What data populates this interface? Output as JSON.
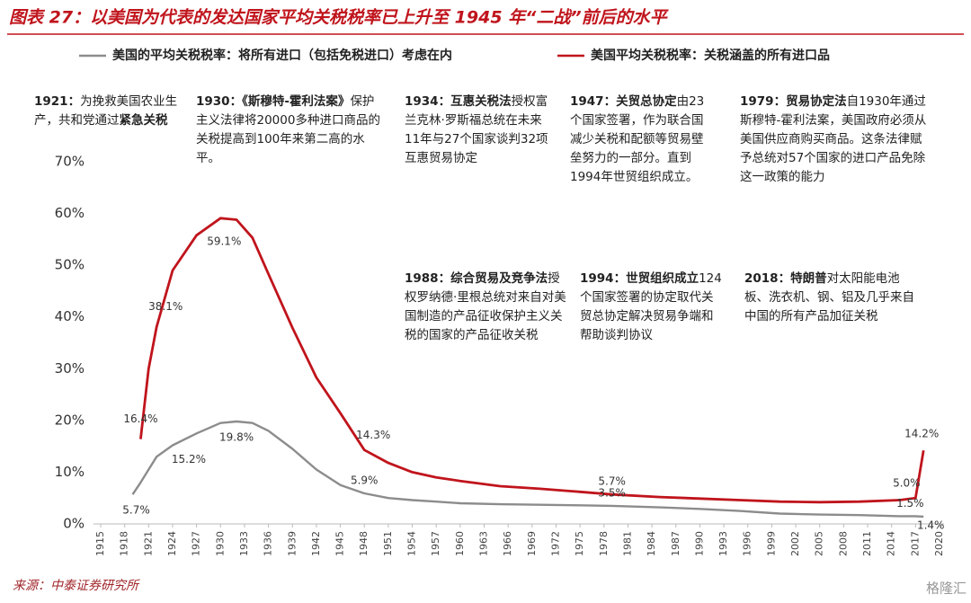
{
  "chart_data": {
    "type": "line",
    "title": "图表 27：以美国为代表的发达国家平均关税税率已上升至 1945 年“二战”前后的水平",
    "x": [
      1919,
      1920,
      1921,
      1922,
      1924,
      1927,
      1930,
      1932,
      1934,
      1936,
      1939,
      1942,
      1945,
      1948,
      1951,
      1954,
      1957,
      1960,
      1965,
      1970,
      1975,
      1979,
      1985,
      1990,
      1995,
      2000,
      2005,
      2010,
      2015,
      2017,
      2018
    ],
    "series": [
      {
        "name": "美国的平均关税税率：将所有进口（包括免税进口）考虑在内",
        "color": "#8c8c8c",
        "values": [
          5.7,
          8,
          10.5,
          13,
          15.2,
          17.5,
          19.5,
          19.8,
          19.5,
          18,
          14.5,
          10.5,
          7.5,
          5.9,
          5,
          4.6,
          4.3,
          4,
          3.8,
          3.7,
          3.6,
          3.5,
          3.2,
          2.9,
          2.5,
          2,
          1.8,
          1.7,
          1.5,
          1.5,
          1.4
        ],
        "value_labels": [
          "5.7%",
          null,
          null,
          null,
          "15.2%",
          null,
          null,
          "19.8%",
          null,
          null,
          null,
          null,
          null,
          "5.9%",
          null,
          null,
          null,
          null,
          null,
          null,
          null,
          "3.5%",
          null,
          null,
          null,
          null,
          null,
          null,
          null,
          "1.5%",
          "1.4%"
        ]
      },
      {
        "name": "美国平均关税税率：关税涵盖的所有进口品",
        "color": "#c0141c",
        "values": [
          null,
          16.4,
          30,
          38.1,
          49,
          55.8,
          59.1,
          58.8,
          55.3,
          48.3,
          37.9,
          28.3,
          21.4,
          14.3,
          11.8,
          10,
          9,
          8.3,
          7.3,
          6.8,
          6.2,
          5.7,
          5.2,
          4.9,
          4.6,
          4.3,
          4.2,
          4.3,
          4.6,
          5.0,
          14.2
        ],
        "value_labels": [
          null,
          "16.4%",
          null,
          "38.1%",
          null,
          null,
          "59.1%",
          null,
          null,
          null,
          null,
          null,
          null,
          "14.3%",
          null,
          null,
          null,
          null,
          null,
          null,
          null,
          "5.7%",
          null,
          null,
          null,
          null,
          null,
          null,
          null,
          "5.0%",
          "14.2%"
        ]
      }
    ],
    "xlim": [
      1915,
      2020
    ],
    "xticks": [
      1915,
      1918,
      1921,
      1924,
      1927,
      1930,
      1933,
      1936,
      1939,
      1942,
      1945,
      1948,
      1951,
      1954,
      1957,
      1960,
      1963,
      1966,
      1969,
      1972,
      1975,
      1978,
      1981,
      1984,
      1987,
      1990,
      1993,
      1996,
      1999,
      2002,
      2005,
      2008,
      2011,
      2014,
      2017,
      2020
    ],
    "ylim": [
      0,
      70
    ],
    "yticks": [
      {
        "value": 0,
        "label": "0%"
      },
      {
        "value": 10,
        "label": "10%"
      },
      {
        "value": 20,
        "label": "20%"
      },
      {
        "value": 30,
        "label": "30%"
      },
      {
        "value": 40,
        "label": "40%"
      },
      {
        "value": 50,
        "label": "50%"
      },
      {
        "value": 60,
        "label": "60%"
      },
      {
        "value": 70,
        "label": "70%"
      }
    ],
    "grid": false,
    "annotations": [
      {
        "lead": "1921：",
        "body": "为挽救美国农业生产，共和党通过",
        "tail": "紧急关税"
      },
      {
        "lead": "1930：《斯穆特-霍利法案》",
        "body": "保护主义法律将20000多种进口商品的关税提高到100年来第二高的水平。"
      },
      {
        "lead": "1934：互惠关税法",
        "body": "授权富兰克林·罗斯福总统在未来11年与27个国家谈判32项互惠贸易协定"
      },
      {
        "lead": "1947：关贸总协定",
        "body": "由23个国家签署，作为联合国减少关税和配额等贸易壁垒努力的一部分。直到1994年世贸组织成立。"
      },
      {
        "lead": "1979：贸易协定法",
        "body": "自1930年通过斯穆特-霍利法案，美国政府必须从美国供应商购买商品。这条法律赋予总统对57个国家的进口产品免除这一政策的能力"
      },
      {
        "lead": "1988：综合贸易及竞争法",
        "body": "授权罗纳德·里根总统对来自对美国制造的产品征收保护主义关税的国家的产品征收关税"
      },
      {
        "lead": "1994：世贸组织成立",
        "body": "124个国家签署的协定取代关贸总协定解决贸易争端和帮助谈判协议"
      },
      {
        "lead": "2018：特朗普",
        "body": "对太阳能电池板、洗衣机、钢、铝及几乎来自中国的所有产品加征关税"
      }
    ],
    "source": "来源：中泰证券研究所",
    "watermark": "格隆汇"
  }
}
